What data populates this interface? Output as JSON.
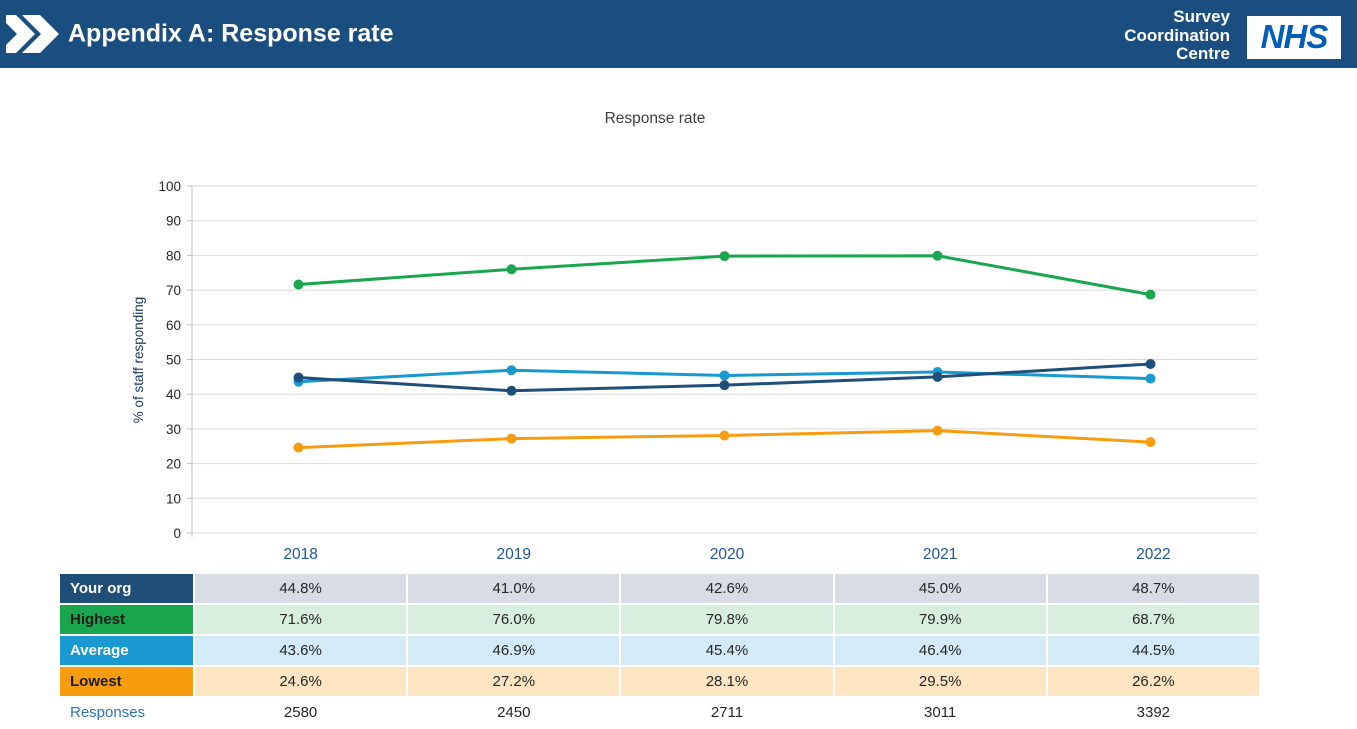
{
  "header": {
    "title": "Appendix A: Response rate",
    "brand": {
      "line1": "Survey",
      "line2": "Coordination",
      "line3": "Centre"
    },
    "nhs_logo_text": "NHS",
    "bar_color": "#1B4E80",
    "nhs_blue": "#005EB8"
  },
  "chart_data": {
    "type": "line",
    "title": "Response rate",
    "ylabel": "% of staff responding",
    "xlabel": "",
    "ylim": [
      0,
      100
    ],
    "ytick_step": 10,
    "grid": true,
    "legend_position": "table-row-headers",
    "x": [
      "2018",
      "2019",
      "2020",
      "2021",
      "2022"
    ],
    "series": [
      {
        "name": "Highest",
        "color": "#1AA64F",
        "values": [
          71.6,
          76.0,
          79.8,
          79.9,
          68.7
        ]
      },
      {
        "name": "Lowest",
        "color": "#F89C0F",
        "values": [
          24.6,
          27.2,
          28.1,
          29.5,
          26.2
        ]
      },
      {
        "name": "Average",
        "color": "#1899D1",
        "values": [
          43.6,
          46.9,
          45.4,
          46.4,
          44.5
        ]
      },
      {
        "name": "Your org",
        "color": "#1F4E79",
        "values": [
          44.8,
          41.0,
          42.6,
          45.0,
          48.7
        ]
      }
    ]
  },
  "table": {
    "columns": [
      "2018",
      "2019",
      "2020",
      "2021",
      "2022"
    ],
    "header_text_color": "#1F5596",
    "rows": [
      {
        "label": "Your org",
        "values": [
          "44.8%",
          "41.0%",
          "42.6%",
          "45.0%",
          "48.7%"
        ],
        "label_bg": "#1F4E79",
        "label_color": "#FFFFFF",
        "cell_bg": "#D7DCE5"
      },
      {
        "label": "Highest",
        "values": [
          "71.6%",
          "76.0%",
          "79.8%",
          "79.9%",
          "68.7%"
        ],
        "label_bg": "#1AA64F",
        "label_color": "#1C1C1C",
        "cell_bg": "#D8EEDE"
      },
      {
        "label": "Average",
        "values": [
          "43.6%",
          "46.9%",
          "45.4%",
          "46.4%",
          "44.5%"
        ],
        "label_bg": "#1899D1",
        "label_color": "#FFFFFF",
        "cell_bg": "#D3EBF7"
      },
      {
        "label": "Lowest",
        "values": [
          "24.6%",
          "27.2%",
          "28.1%",
          "29.5%",
          "26.2%"
        ],
        "label_bg": "#F89C0F",
        "label_color": "#1C1C1C",
        "cell_bg": "#FDE5C3"
      },
      {
        "label": "Responses",
        "values": [
          "2580",
          "2450",
          "2711",
          "3011",
          "3392"
        ],
        "label_bg": "transparent",
        "label_color": "#2E75B6",
        "cell_bg": "transparent"
      }
    ]
  },
  "chart_colors": {
    "gridline": "#D9D9D9",
    "axis_line": "#BFBFBF",
    "tick_label": "#262626"
  }
}
